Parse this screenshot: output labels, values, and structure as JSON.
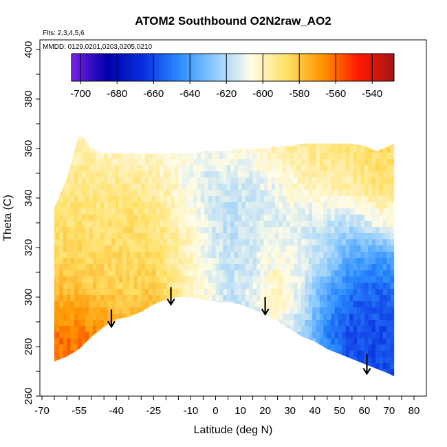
{
  "chart_data": {
    "type": "heatmap",
    "title": "ATOM2 Southbound O2N2raw_AO2",
    "flights_label": "Flts: 2,3,4,5,6",
    "dates_label": "MMDD: 0129,0201,0203,0205,0210",
    "xlabel": "Latitude (deg N)",
    "ylabel": "Theta (C)",
    "xlim": [
      -70,
      80
    ],
    "ylim": [
      260,
      400
    ],
    "x_ticks": [
      -70,
      -55,
      -40,
      -25,
      -10,
      0,
      10,
      20,
      30,
      40,
      50,
      60,
      70,
      80
    ],
    "y_ticks": [
      260,
      280,
      300,
      320,
      340,
      360,
      380,
      400
    ],
    "colorbar": {
      "ticks": [
        -700,
        -680,
        -660,
        -640,
        -620,
        -600,
        -580,
        -560,
        -540
      ],
      "range": [
        -705,
        -528
      ],
      "colors": [
        "#7a1fe8",
        "#0000a8",
        "#0a2ee0",
        "#2a8cff",
        "#8ecbff",
        "#fffce8",
        "#ffe066",
        "#ff9500",
        "#ff1a00",
        "#a31515"
      ]
    },
    "surface_boundary": {
      "lat": [
        -65,
        -60,
        -55,
        -50,
        -45,
        -40,
        -35,
        -30,
        -25,
        -20,
        -15,
        -10,
        -5,
        0,
        5,
        10,
        15,
        20,
        25,
        30,
        35,
        40,
        45,
        50,
        55,
        60,
        65,
        70,
        72
      ],
      "theta": [
        274,
        276,
        279,
        284,
        288,
        291,
        292,
        294,
        297,
        299,
        300,
        300,
        299,
        298,
        298,
        297,
        295,
        293,
        290,
        287,
        284,
        282,
        279,
        277,
        275,
        273,
        271,
        269,
        268
      ]
    },
    "top_boundary": {
      "lat": [
        -65,
        -60,
        -55,
        -53,
        -50,
        -45,
        -40,
        -35,
        -30,
        -25,
        -20,
        -15,
        -10,
        -5,
        0,
        5,
        10,
        15,
        20,
        25,
        30,
        35,
        40,
        45,
        50,
        55,
        60,
        65,
        70,
        72
      ],
      "theta": [
        336,
        348,
        366,
        364,
        360,
        358,
        358,
        358,
        358,
        358,
        358,
        358,
        358,
        359,
        359,
        359,
        360,
        360,
        360,
        361,
        361,
        362,
        362,
        362,
        362,
        362,
        361,
        359,
        361,
        362
      ]
    },
    "field": {
      "lat": [
        -65,
        -55,
        -45,
        -35,
        -25,
        -15,
        -5,
        5,
        15,
        25,
        35,
        45,
        55,
        65,
        72
      ],
      "theta": [
        270,
        285,
        300,
        315,
        330,
        345,
        365
      ],
      "values": [
        [
          -562,
          -560,
          -566,
          -572,
          -574,
          -586,
          -612,
          -628,
          -628,
          -620,
          -608,
          -640,
          -658,
          -658,
          -660
        ],
        [
          -562,
          -562,
          -568,
          -573,
          -578,
          -590,
          -606,
          -620,
          -614,
          -610,
          -622,
          -648,
          -660,
          -660,
          -658
        ],
        [
          -575,
          -576,
          -580,
          -582,
          -580,
          -594,
          -604,
          -616,
          -612,
          -598,
          -614,
          -640,
          -654,
          -656,
          -652
        ],
        [
          -585,
          -584,
          -586,
          -586,
          -586,
          -596,
          -608,
          -618,
          -614,
          -604,
          -610,
          -622,
          -640,
          -644,
          -640
        ],
        [
          -588,
          -588,
          -590,
          -588,
          -590,
          -598,
          -610,
          -618,
          -616,
          -612,
          -614,
          -616,
          -620,
          -610,
          -606
        ],
        [
          -594,
          -592,
          -592,
          -592,
          -596,
          -604,
          -614,
          -616,
          -614,
          -608,
          -602,
          -598,
          -596,
          -590,
          -590
        ],
        [
          -596,
          -600,
          -604,
          -606,
          -606,
          -606,
          -606,
          -604,
          -600,
          -596,
          -592,
          -590,
          -588,
          -586,
          -586
        ]
      ]
    },
    "arrows": [
      {
        "lat": -42,
        "theta_top": 295,
        "theta_tip": 288
      },
      {
        "lat": -18,
        "theta_top": 304,
        "theta_tip": 297
      },
      {
        "lat": 20,
        "theta_top": 300,
        "theta_tip": 293
      },
      {
        "lat": 61,
        "theta_top": 277,
        "theta_tip": 269
      }
    ],
    "grid": false,
    "legend": "top colorbar"
  }
}
